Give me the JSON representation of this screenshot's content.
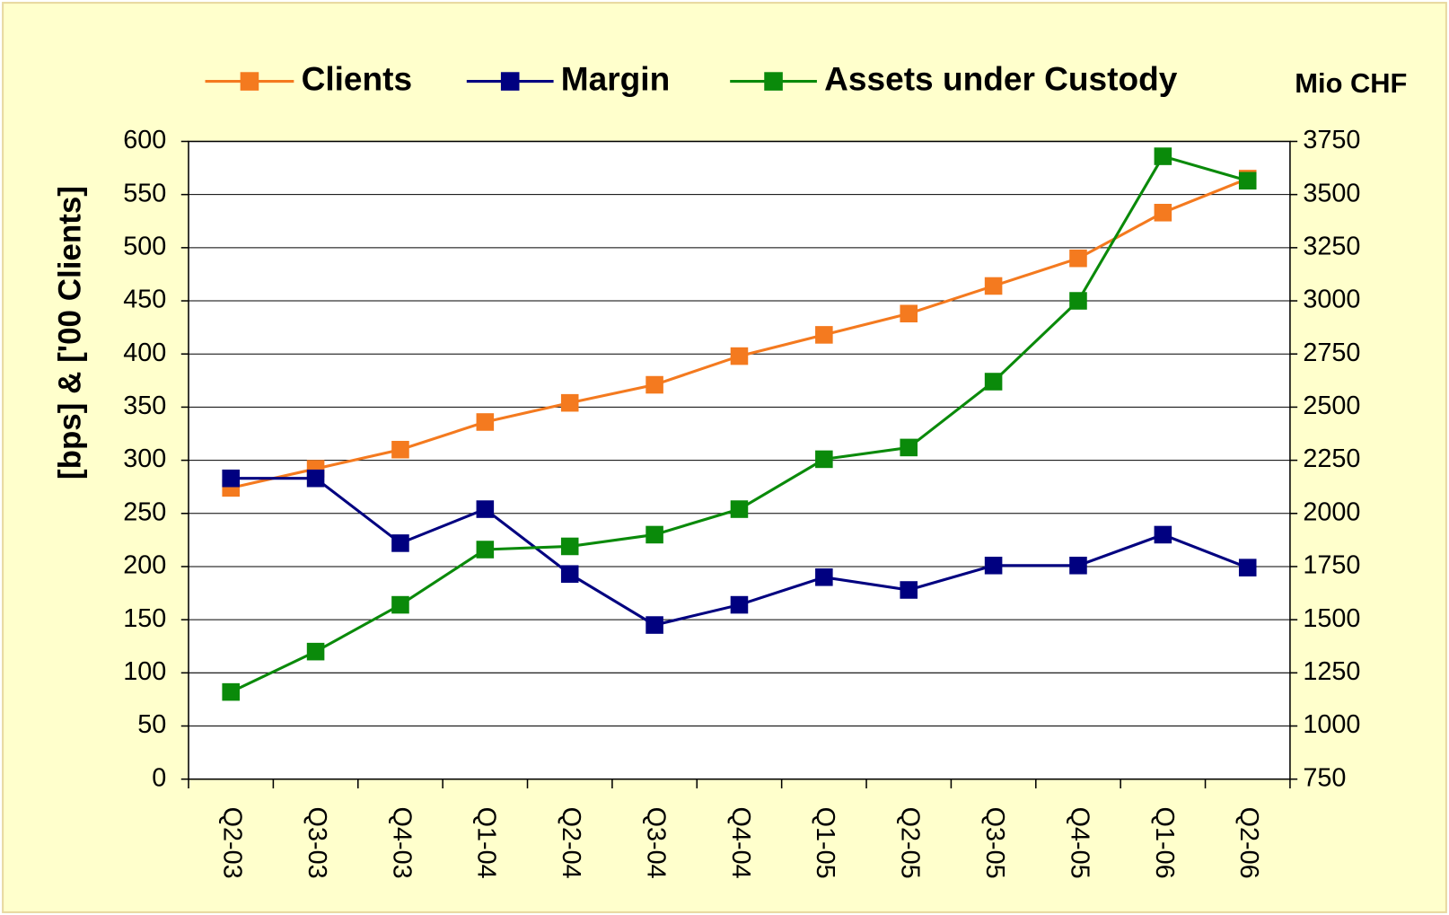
{
  "chart_data": {
    "type": "line",
    "y_label": "[bps] & ['00 Clients]",
    "y2_label": "Mio CHF",
    "categories": [
      "Q2-03",
      "Q3-03",
      "Q4-03",
      "Q1-04",
      "Q2-04",
      "Q3-04",
      "Q4-04",
      "Q1-05",
      "Q2-05",
      "Q3-05",
      "Q4-05",
      "Q1-06",
      "Q2-06"
    ],
    "series": [
      {
        "name": "Clients",
        "color": "#f47a1f",
        "values": [
          274,
          292,
          310,
          336,
          354,
          371,
          398,
          418,
          438,
          464,
          490,
          533,
          565
        ]
      },
      {
        "name": "Margin",
        "color": "#000080",
        "values": [
          283,
          283,
          222,
          254,
          193,
          145,
          164,
          190,
          178,
          201,
          201,
          230,
          199
        ]
      },
      {
        "name": "Assets under Custody",
        "color": "#0a8a0a",
        "axis": "y2",
        "values": [
          1160,
          1350,
          1570,
          1830,
          1845,
          1900,
          2020,
          2255,
          2310,
          2620,
          3000,
          3680,
          3565
        ]
      }
    ],
    "ylim": [
      0,
      600
    ],
    "yticks": [
      0,
      50,
      100,
      150,
      200,
      250,
      300,
      350,
      400,
      450,
      500,
      550,
      600
    ],
    "y2lim": [
      750,
      3750
    ],
    "y2ticks": [
      750,
      1000,
      1250,
      1500,
      1750,
      2000,
      2250,
      2500,
      2750,
      3000,
      3250,
      3500,
      3750
    ],
    "grid": true,
    "legend": "top"
  }
}
